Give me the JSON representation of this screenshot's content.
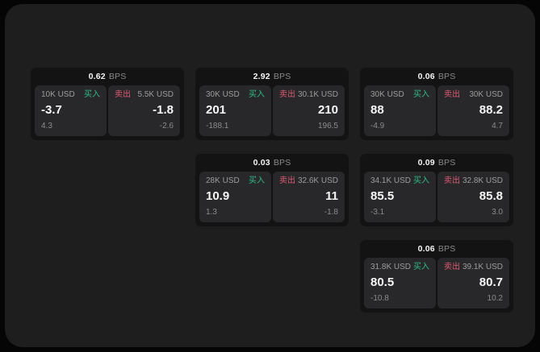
{
  "colors": {
    "background": "#050505",
    "panel": "#1e1e1f",
    "card": "#131314",
    "tile": "#28282a",
    "text_primary": "#f5f5f5",
    "text_secondary": "#9c9c9c",
    "text_muted": "#8a8a8a",
    "buy_green": "#2ebd85",
    "sell_red": "#dd5a72"
  },
  "cards": [
    {
      "bps_value": "0.62",
      "bps_unit": "BPS",
      "buy": {
        "amount": "10K USD",
        "side_label": "买入",
        "value": "-3.7",
        "delta": "4.3"
      },
      "sell": {
        "side_label": "卖出",
        "amount": "5.5K USD",
        "value": "-1.8",
        "delta": "-2.6"
      }
    },
    {
      "bps_value": "2.92",
      "bps_unit": "BPS",
      "buy": {
        "amount": "30K USD",
        "side_label": "买入",
        "value": "201",
        "delta": "-188.1"
      },
      "sell": {
        "side_label": "卖出",
        "amount": "30.1K USD",
        "value": "210",
        "delta": "196.5"
      }
    },
    {
      "bps_value": "0.06",
      "bps_unit": "BPS",
      "buy": {
        "amount": "30K USD",
        "side_label": "买入",
        "value": "88",
        "delta": "-4.9"
      },
      "sell": {
        "side_label": "卖出",
        "amount": "30K USD",
        "value": "88.2",
        "delta": "4.7"
      }
    },
    {
      "bps_value": "0.03",
      "bps_unit": "BPS",
      "buy": {
        "amount": "28K USD",
        "side_label": "买入",
        "value": "10.9",
        "delta": "1.3"
      },
      "sell": {
        "side_label": "卖出",
        "amount": "32.6K USD",
        "value": "11",
        "delta": "-1.8"
      }
    },
    {
      "bps_value": "0.09",
      "bps_unit": "BPS",
      "buy": {
        "amount": "34.1K USD",
        "side_label": "买入",
        "value": "85.5",
        "delta": "-3.1"
      },
      "sell": {
        "side_label": "卖出",
        "amount": "32.8K USD",
        "value": "85.8",
        "delta": "3.0"
      }
    },
    {
      "bps_value": "0.06",
      "bps_unit": "BPS",
      "buy": {
        "amount": "31.8K USD",
        "side_label": "买入",
        "value": "80.5",
        "delta": "-10.8"
      },
      "sell": {
        "side_label": "卖出",
        "amount": "39.1K USD",
        "value": "80.7",
        "delta": "10.2"
      }
    }
  ]
}
